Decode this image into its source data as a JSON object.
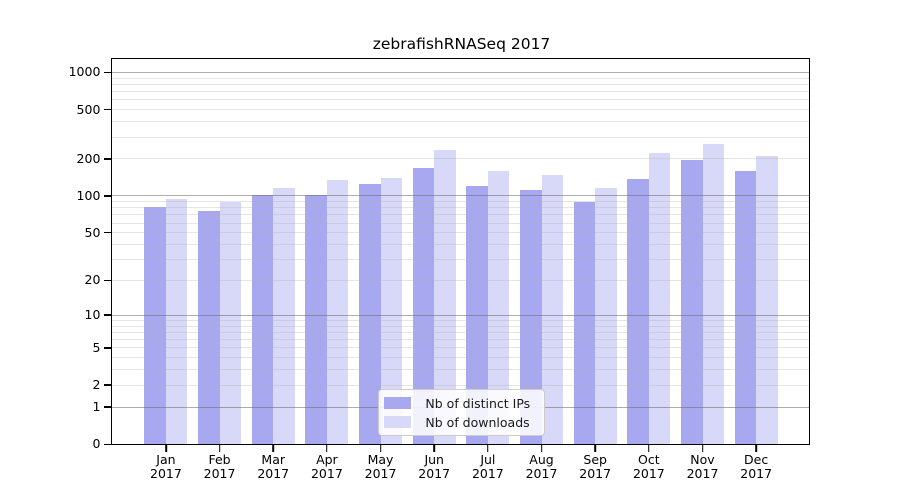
{
  "chart_data": {
    "type": "bar",
    "title": "zebrafishRNASeq 2017",
    "categories": [
      "Jan 2017",
      "Feb 2017",
      "Mar 2017",
      "Apr 2017",
      "May 2017",
      "Jun 2017",
      "Jul 2017",
      "Aug 2017",
      "Sep 2017",
      "Oct 2017",
      "Nov 2017",
      "Dec 2017"
    ],
    "x_tick_lines": [
      [
        "Jan",
        "2017"
      ],
      [
        "Feb",
        "2017"
      ],
      [
        "Mar",
        "2017"
      ],
      [
        "Apr",
        "2017"
      ],
      [
        "May",
        "2017"
      ],
      [
        "Jun",
        "2017"
      ],
      [
        "Jul",
        "2017"
      ],
      [
        "Aug",
        "2017"
      ],
      [
        "Sep",
        "2017"
      ],
      [
        "Oct",
        "2017"
      ],
      [
        "Nov",
        "2017"
      ],
      [
        "Dec",
        "2017"
      ]
    ],
    "series": [
      {
        "key": "distinct-ips",
        "name": "Nb of distinct IPs",
        "color": "#a8a8f0",
        "values": [
          81,
          75,
          101,
          102,
          124,
          170,
          120,
          111,
          90,
          136,
          194,
          160
        ]
      },
      {
        "key": "downloads",
        "name": "Nb of downloads",
        "color": "#d8d8f8",
        "values": [
          95,
          90,
          116,
          135,
          139,
          234,
          160,
          147,
          116,
          225,
          266,
          210
        ]
      }
    ],
    "xlabel": "",
    "ylabel": "",
    "yscale": "log1p",
    "ylim": [
      0,
      1273
    ],
    "y_ticks": [
      0,
      1,
      2,
      5,
      10,
      20,
      50,
      100,
      200,
      500,
      1000
    ],
    "y_major_gridlines": [
      1,
      10,
      100,
      1000
    ],
    "y_minor_gridlines": [
      2,
      3,
      4,
      5,
      6,
      7,
      8,
      9,
      20,
      30,
      40,
      50,
      60,
      70,
      80,
      90,
      200,
      300,
      400,
      500,
      600,
      700,
      800,
      900
    ],
    "grid": "horizontal",
    "legend_position": "inside-lower-center"
  },
  "colors": {
    "background": "#ffffff",
    "spine": "#000000",
    "text": "#000000",
    "grid_major": "#696969",
    "grid_minor": "#afafaf",
    "bar_distinct_ips": "#a8a8f0",
    "bar_downloads": "#d8d8f8"
  }
}
